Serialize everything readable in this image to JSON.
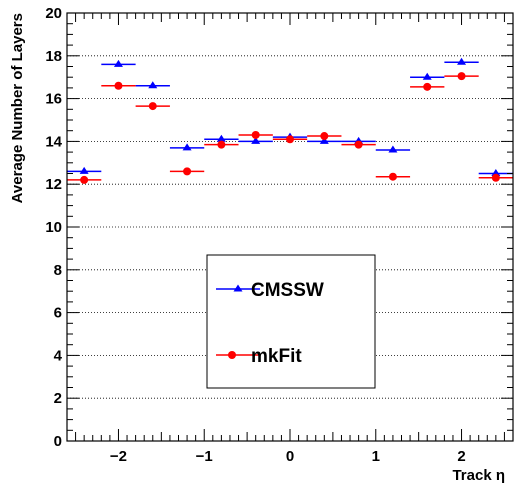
{
  "chart_data": {
    "type": "scatter",
    "xlabel": "Track η",
    "ylabel": "Average Number of Layers",
    "xlim": [
      -2.6,
      2.6
    ],
    "ylim": [
      0,
      20
    ],
    "grid": "horizontal dotted",
    "x_ticks": [
      {
        "value": -2,
        "label": "−2"
      },
      {
        "value": -1,
        "label": "−1"
      },
      {
        "value": 0,
        "label": "0"
      },
      {
        "value": 1,
        "label": "1"
      },
      {
        "value": 2,
        "label": "2"
      }
    ],
    "y_ticks": [
      {
        "value": 0,
        "label": "0"
      },
      {
        "value": 2,
        "label": "2"
      },
      {
        "value": 4,
        "label": "4"
      },
      {
        "value": 6,
        "label": "6"
      },
      {
        "value": 8,
        "label": "8"
      },
      {
        "value": 10,
        "label": "10"
      },
      {
        "value": 12,
        "label": "12"
      },
      {
        "value": 14,
        "label": "14"
      },
      {
        "value": 16,
        "label": "16"
      },
      {
        "value": 18,
        "label": "18"
      },
      {
        "value": 20,
        "label": "20"
      }
    ],
    "bin_half_width": 0.2,
    "legend_position": "center-lower",
    "series": [
      {
        "name": "CMSSW",
        "color": "#0000ff",
        "marker": "triangle",
        "x": [
          -2.4,
          -2.0,
          -1.6,
          -1.2,
          -0.8,
          -0.4,
          0.0,
          0.4,
          0.8,
          1.2,
          1.6,
          2.0,
          2.4
        ],
        "values": [
          12.6,
          17.6,
          16.6,
          13.7,
          14.1,
          14.0,
          14.2,
          14.0,
          14.0,
          13.6,
          17.0,
          17.7,
          12.5
        ]
      },
      {
        "name": "mkFit",
        "color": "#ff0000",
        "marker": "circle",
        "x": [
          -2.4,
          -2.0,
          -1.6,
          -1.2,
          -0.8,
          -0.4,
          0.0,
          0.4,
          0.8,
          1.2,
          1.6,
          2.0,
          2.4
        ],
        "values": [
          12.2,
          16.6,
          15.65,
          12.6,
          13.85,
          14.3,
          14.1,
          14.25,
          13.85,
          12.35,
          16.55,
          17.05,
          12.3
        ]
      }
    ]
  }
}
